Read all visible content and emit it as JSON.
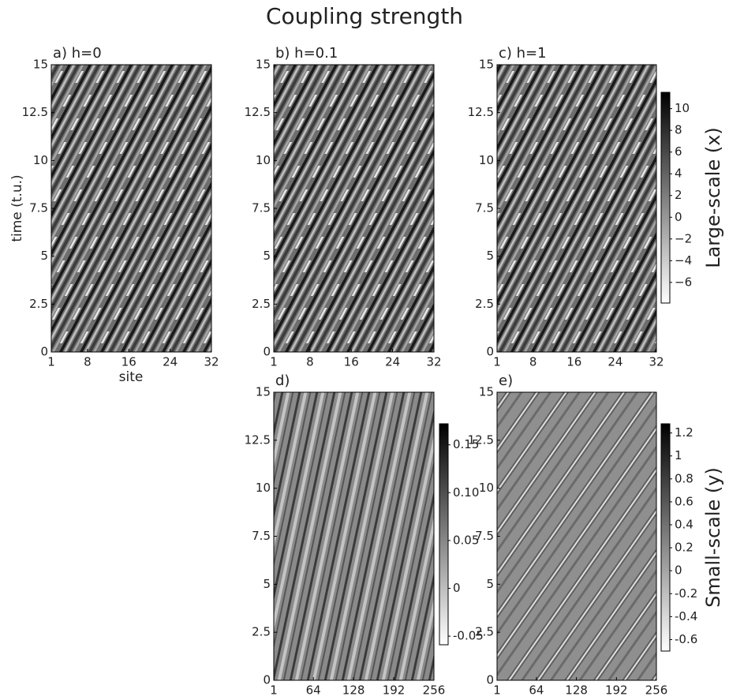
{
  "title": "Coupling strength",
  "y_label": "time (t.u.)",
  "x_label": "site",
  "chart_data": [
    {
      "type": "heatmap",
      "title": "a) h=0",
      "xlim": [
        1,
        32
      ],
      "xticks": [
        1,
        8,
        16,
        24,
        32
      ],
      "ylim": [
        0,
        15
      ],
      "yticks": [
        0,
        2.5,
        5,
        7.5,
        10,
        12.5,
        15
      ]
    },
    {
      "type": "heatmap",
      "title": "b) h=0.1",
      "xlim": [
        1,
        32
      ],
      "xticks": [
        1,
        8,
        16,
        24,
        32
      ],
      "ylim": [
        0,
        15
      ],
      "yticks": [
        0,
        2.5,
        5,
        7.5,
        10,
        12.5,
        15
      ]
    },
    {
      "type": "heatmap",
      "title": "c) h=1",
      "xlim": [
        1,
        32
      ],
      "xticks": [
        1,
        8,
        16,
        24,
        32
      ],
      "ylim": [
        0,
        15
      ],
      "yticks": [
        0,
        2.5,
        5,
        7.5,
        10,
        12.5,
        15
      ],
      "colorbar": {
        "label": "Large-scale (x)",
        "lim": [
          -7.9,
          11.5
        ],
        "ticks": [
          {
            "value": -6,
            "label": "−6"
          },
          {
            "value": -4,
            "label": "−4"
          },
          {
            "value": -2,
            "label": "−2"
          },
          0,
          2,
          4,
          6,
          8,
          10
        ]
      }
    },
    {
      "type": "heatmap",
      "title": "d)",
      "xlim": [
        1,
        256
      ],
      "xticks": [
        1,
        64,
        128,
        192,
        256
      ],
      "ylim": [
        0,
        15
      ],
      "yticks": [
        0,
        2.5,
        5,
        7.5,
        10,
        12.5,
        15
      ],
      "colorbar": {
        "lim": [
          -0.059,
          0.172
        ],
        "ticks": [
          {
            "value": -0.05,
            "label": "-0.05"
          },
          0,
          0.05,
          {
            "value": 0.1,
            "label": "0.10"
          },
          0.15
        ]
      }
    },
    {
      "type": "heatmap",
      "title": "e)",
      "xlim": [
        1,
        256
      ],
      "xticks": [
        1,
        64,
        128,
        192,
        256
      ],
      "ylim": [
        0,
        15
      ],
      "yticks": [
        0,
        2.5,
        5,
        7.5,
        10,
        12.5,
        15
      ],
      "colorbar": {
        "label": "Small-scale (y)",
        "lim": [
          -0.7,
          1.28
        ],
        "ticks": [
          {
            "value": -0.6,
            "label": "-0.6"
          },
          {
            "value": -0.4,
            "label": "-0.4"
          },
          {
            "value": -0.2,
            "label": "-0.2"
          },
          0,
          0.2,
          0.4,
          0.6,
          0.8,
          1,
          1.2
        ]
      }
    }
  ]
}
